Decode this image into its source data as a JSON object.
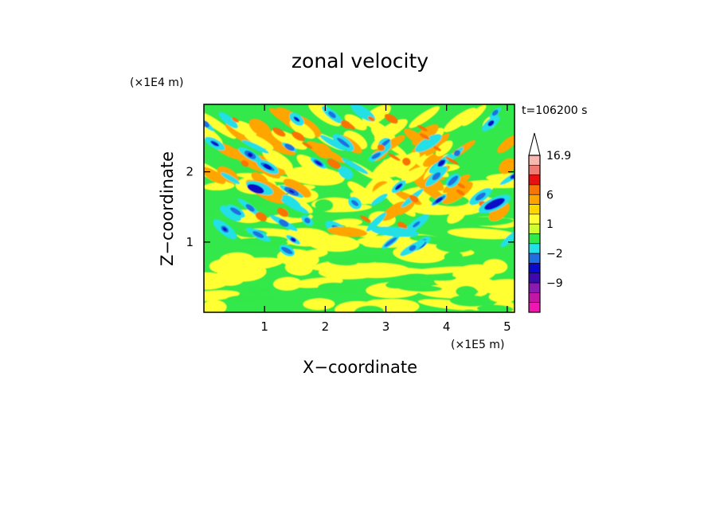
{
  "chart_data": {
    "type": "heatmap",
    "title": "zonal velocity",
    "xlabel": "X−coordinate",
    "ylabel": "Z−coordinate",
    "x_unit_note": "(×1E5 m)",
    "y_unit_note": "(×1E4 m)",
    "time_label": "t=106200 s",
    "x_ticks": [
      "1",
      "2",
      "3",
      "4",
      "5"
    ],
    "x_tick_values": [
      1,
      2,
      3,
      4,
      5
    ],
    "y_ticks": [
      "1",
      "2"
    ],
    "y_tick_values": [
      1,
      2
    ],
    "xlim": [
      0,
      5.12
    ],
    "ylim": [
      0,
      2.96
    ],
    "colorbar": {
      "labels": [
        "16.9",
        "6",
        "1",
        "−2",
        "−9"
      ],
      "bands": [
        {
          "color": "#f7b8b0"
        },
        {
          "color": "#ee7a72"
        },
        {
          "color": "#e8110f"
        },
        {
          "color": "#f97306"
        },
        {
          "color": "#ffa500"
        },
        {
          "color": "#ffd700"
        },
        {
          "color": "#ffff33"
        },
        {
          "color": "#cfff2e"
        },
        {
          "color": "#33e84a"
        },
        {
          "color": "#22e0e6"
        },
        {
          "color": "#1f6fe0"
        },
        {
          "color": "#0a0ac8"
        },
        {
          "color": "#3d0ab0"
        },
        {
          "color": "#8a1ab0"
        },
        {
          "color": "#c416a6"
        },
        {
          "color": "#ee18b0"
        }
      ]
    },
    "field_colors": {
      "background": "#33e84a",
      "weak_positive": "#ffff33",
      "moderate_positive": "#ffa500",
      "strong_positive": "#f97306",
      "weak_negative": "#22e0e6",
      "moderate_negative": "#1f6fe0",
      "strong_negative": "#0a0ac8"
    }
  }
}
